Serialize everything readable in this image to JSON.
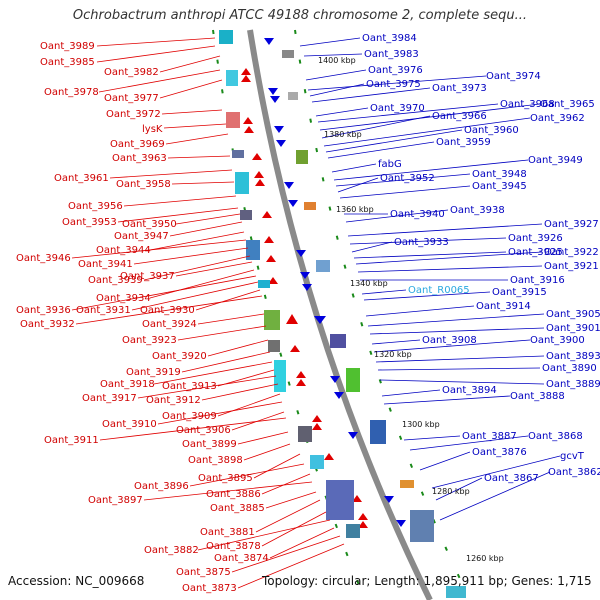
{
  "title": "Ochrobactrum anthropi ATCC 49188 chromosome 2, complete sequ...",
  "footer": {
    "accession": "Accession: NC_009668",
    "topology": "Topology: circular; Length: 1,895,911 bp; Genes: 1,715"
  },
  "colors": {
    "forward": "#e00000",
    "reverse": "#0000dd",
    "backbone": "#8a8a8a",
    "tick": "#1a8a1a",
    "highlight": "#2aa8e0"
  },
  "kbp_markers": [
    "1400 kbp",
    "1380 kbp",
    "1360 kbp",
    "1340 kbp",
    "1320 kbp",
    "1300 kbp",
    "1280 kbp",
    "1260 kbp"
  ],
  "left_labels": [
    "Oant_3989",
    "Oant_3985",
    "Oant_3982",
    "Oant_3978",
    "Oant_3977",
    "Oant_3972",
    "lysK",
    "Oant_3969",
    "Oant_3963",
    "Oant_3961",
    "Oant_3958",
    "Oant_3956",
    "Oant_3953",
    "Oant_3950",
    "Oant_3947",
    "Oant_3944",
    "Oant_3946",
    "Oant_3941",
    "Oant_3939",
    "Oant_3937",
    "Oant_3934",
    "Oant_3936",
    "Oant_3931",
    "Oant_3930",
    "Oant_3932",
    "Oant_3924",
    "Oant_3923",
    "Oant_3920",
    "Oant_3919",
    "Oant_3918",
    "Oant_3913",
    "Oant_3917",
    "Oant_3912",
    "Oant_3909",
    "Oant_3910",
    "Oant_3906",
    "Oant_3911",
    "Oant_3899",
    "Oant_3898",
    "Oant_3895",
    "Oant_3896",
    "Oant_3886",
    "Oant_3897",
    "Oant_3885",
    "Oant_3881",
    "Oant_3878",
    "Oant_3882",
    "Oant_3874",
    "Oant_3875",
    "Oant_3873"
  ],
  "right_labels": [
    "Oant_3984",
    "Oant_3983",
    "Oant_3976",
    "Oant_3974",
    "Oant_3975",
    "Oant_3973",
    "Oant_3970",
    "Oant_3968",
    "Oant_3965",
    "Oant_3966",
    "Oant_3962",
    "Oant_3960",
    "Oant_3959",
    "fabG",
    "Oant_3949",
    "Oant_3948",
    "Oant_3952",
    "Oant_3945",
    "Oant_3940",
    "Oant_3938",
    "Oant_3927",
    "Oant_3926",
    "Oant_3933",
    "Oant_3925",
    "Oant_3922",
    "Oant_3921",
    "Oant_3916",
    "Oant_R0065",
    "Oant_3915",
    "Oant_3914",
    "Oant_3905",
    "Oant_3901",
    "Oant_3908",
    "Oant_3900",
    "Oant_3893",
    "Oant_3890",
    "Oant_3889",
    "Oant_3894",
    "Oant_3888",
    "Oant_3887",
    "Oant_3868",
    "Oant_3876",
    "gcvT",
    "Oant_3867",
    "Oant_3862"
  ]
}
